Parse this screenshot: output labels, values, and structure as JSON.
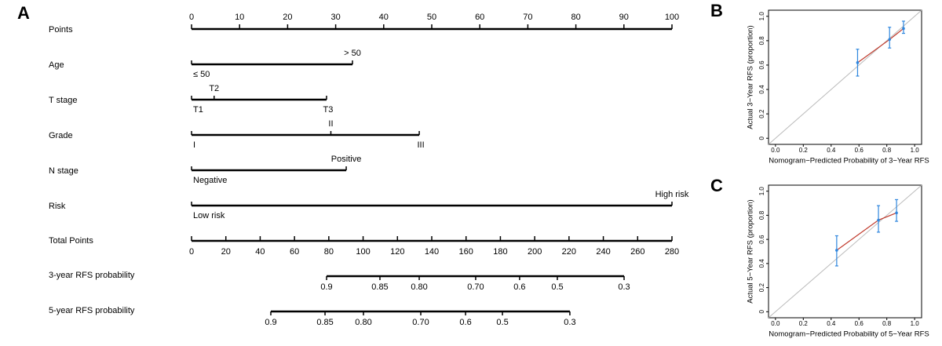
{
  "chart_data": [
    {
      "type": "nomogram",
      "panel_label": "A",
      "points_axis": {
        "name": "Points",
        "xlim": [
          0,
          100
        ],
        "ticks": [
          0,
          10,
          20,
          30,
          40,
          50,
          60,
          70,
          80,
          90,
          100
        ]
      },
      "variables": [
        {
          "name": "Age",
          "levels": [
            "≤ 50",
            "> 50"
          ],
          "points": [
            0,
            33.5
          ],
          "sides": [
            "below",
            "above"
          ]
        },
        {
          "name": "T stage",
          "levels": [
            "T1",
            "T2",
            "T3"
          ],
          "points": [
            0,
            4.7,
            28.1
          ],
          "sides": [
            "below",
            "above",
            "below"
          ]
        },
        {
          "name": "Grade",
          "levels": [
            "I",
            "II",
            "III"
          ],
          "points": [
            0,
            29,
            47.4
          ],
          "sides": [
            "below",
            "above",
            "below"
          ]
        },
        {
          "name": "N stage",
          "levels": [
            "Negative",
            "Positive"
          ],
          "points": [
            0,
            32.2
          ],
          "sides": [
            "below",
            "above"
          ]
        },
        {
          "name": "Risk",
          "levels": [
            "Low risk",
            "High risk"
          ],
          "points": [
            0,
            100
          ],
          "sides": [
            "below",
            "above"
          ]
        }
      ],
      "total_axis": {
        "name": "Total Points",
        "xlim": [
          0,
          280
        ],
        "ticks": [
          0,
          20,
          40,
          60,
          80,
          100,
          120,
          140,
          160,
          180,
          200,
          220,
          240,
          260,
          280
        ]
      },
      "probability_axes": [
        {
          "name": "3-year RFS probability",
          "ticks": [
            0.9,
            0.85,
            {
              "value": 0.8,
              "label": "0.80"
            },
            {
              "value": 0.7,
              "label": "0.70"
            },
            0.6,
            0.5,
            0.3
          ],
          "tick_points": [
            78.7,
            109.8,
            132.7,
            165.6,
            191.2,
            213.2,
            252.1
          ]
        },
        {
          "name": "5-year RFS probability",
          "ticks": [
            0.9,
            0.85,
            {
              "value": 0.8,
              "label": "0.80"
            },
            {
              "value": 0.7,
              "label": "0.70"
            },
            0.6,
            0.5,
            0.3
          ],
          "tick_points": [
            46.2,
            77.8,
            100.2,
            133.6,
            159.7,
            181.2,
            220.5
          ]
        }
      ]
    },
    {
      "type": "calibration",
      "panel_label": "B",
      "xlabel": "Nomogram−Predicted Probability of 3−Year RFS",
      "ylabel": "Actual 3−Year RFS (proportion)",
      "xlim": [
        -0.05,
        1.05
      ],
      "ylim": [
        -0.05,
        1.05
      ],
      "xticks": [
        {
          "value": 0,
          "label": "0.0"
        },
        0.2,
        0.4,
        0.6,
        0.8,
        {
          "value": 1,
          "label": "1.0"
        }
      ],
      "yticks": [
        0,
        0.2,
        0.4,
        0.6,
        0.8,
        {
          "value": 1,
          "label": "1.0"
        }
      ],
      "x": [
        0.59,
        0.82,
        0.92
      ],
      "values": [
        0.62,
        0.81,
        0.9
      ],
      "lower": [
        0.51,
        0.74,
        0.86
      ],
      "upper": [
        0.73,
        0.91,
        0.96
      ]
    },
    {
      "type": "calibration",
      "panel_label": "C",
      "xlabel": "Nomogram−Predicted Probability of 5−Year RFS",
      "ylabel": "Actual 5−Year RFS (proportion)",
      "xlim": [
        -0.05,
        1.05
      ],
      "ylim": [
        -0.05,
        1.05
      ],
      "xticks": [
        {
          "value": 0,
          "label": "0.0"
        },
        0.2,
        0.4,
        0.6,
        0.8,
        {
          "value": 1,
          "label": "1.0"
        }
      ],
      "yticks": [
        0,
        0.2,
        0.4,
        0.6,
        0.8,
        {
          "value": 1,
          "label": "1.0"
        }
      ],
      "x": [
        0.44,
        0.74,
        0.87
      ],
      "values": [
        0.51,
        0.76,
        0.82
      ],
      "lower": [
        0.38,
        0.66,
        0.75
      ],
      "upper": [
        0.63,
        0.88,
        0.93
      ]
    }
  ]
}
